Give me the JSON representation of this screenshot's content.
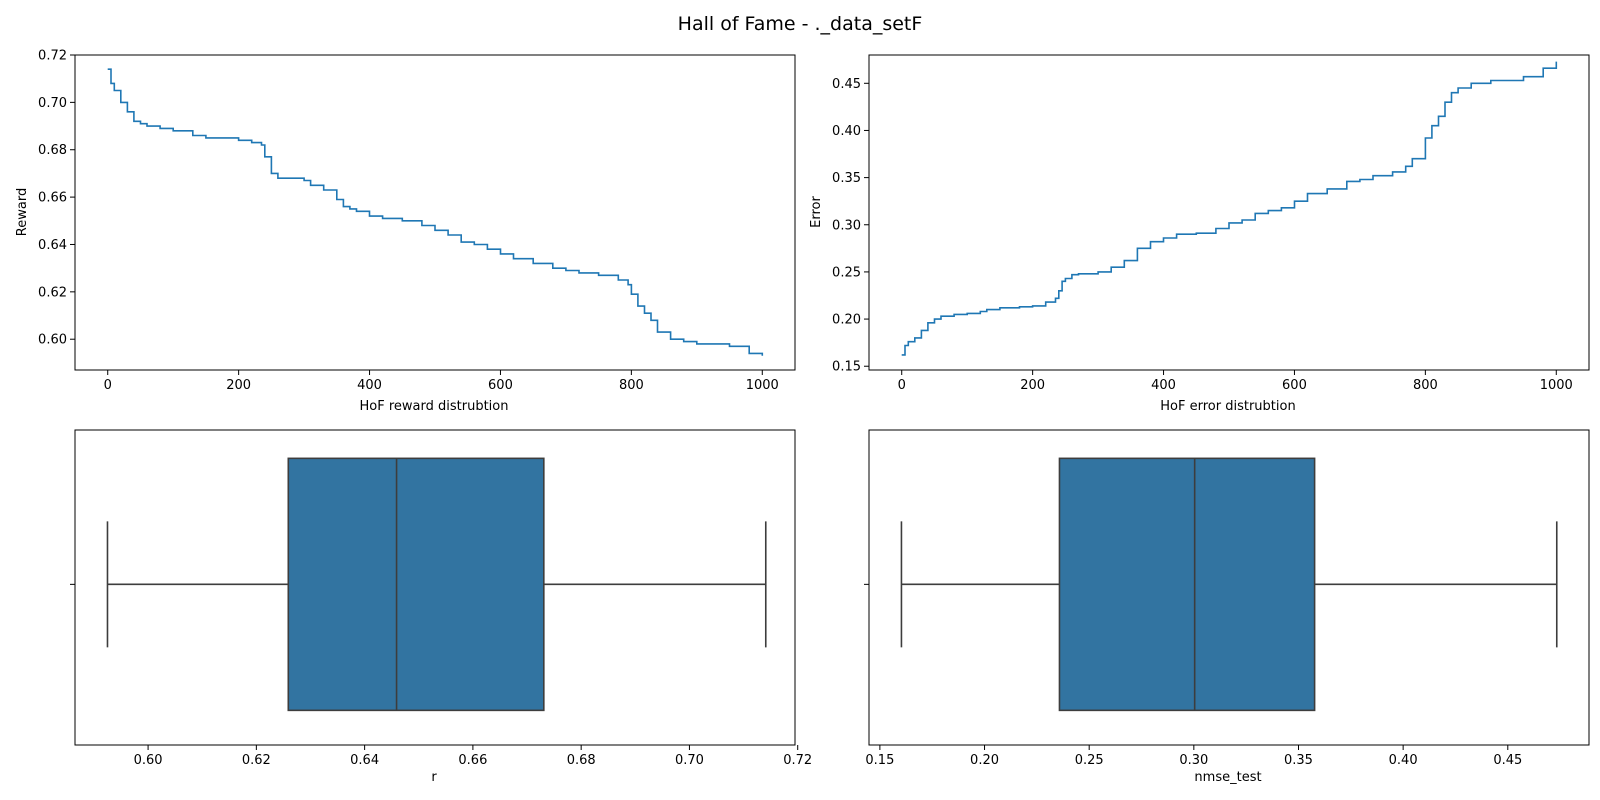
{
  "figure": {
    "title": "Hall of Fame - ._data_setF"
  },
  "colors": {
    "line": "#1f77b4",
    "box_fill": "#3274a1",
    "box_edge": "#3d3d3d",
    "axes": "#000000"
  },
  "chart_data": [
    {
      "type": "line",
      "xlabel": "HoF reward distrubtion",
      "ylabel": "Reward",
      "xlim": [
        -50,
        1050
      ],
      "ylim": [
        0.587,
        0.72
      ],
      "xticks": [
        0,
        200,
        400,
        600,
        800,
        1000
      ],
      "xtick_labels": [
        "0",
        "200",
        "400",
        "600",
        "800",
        "1000"
      ],
      "yticks": [
        0.6,
        0.62,
        0.64,
        0.66,
        0.68,
        0.7,
        0.72
      ],
      "ytick_labels": [
        "0.60",
        "0.62",
        "0.64",
        "0.66",
        "0.68",
        "0.70",
        "0.72"
      ],
      "series": [
        {
          "x": [
            0,
            5,
            10,
            20,
            30,
            40,
            50,
            60,
            80,
            100,
            120,
            130,
            150,
            180,
            200,
            220,
            235,
            240,
            250,
            260,
            280,
            300,
            310,
            330,
            350,
            360,
            370,
            380,
            400,
            420,
            450,
            480,
            500,
            520,
            540,
            560,
            580,
            600,
            620,
            650,
            680,
            700,
            720,
            750,
            780,
            795,
            800,
            810,
            820,
            830,
            840,
            860,
            880,
            900,
            950,
            980,
            1000
          ],
          "y": [
            0.714,
            0.708,
            0.705,
            0.7,
            0.696,
            0.692,
            0.691,
            0.69,
            0.689,
            0.688,
            0.688,
            0.686,
            0.685,
            0.685,
            0.684,
            0.683,
            0.682,
            0.677,
            0.67,
            0.668,
            0.668,
            0.667,
            0.665,
            0.663,
            0.659,
            0.656,
            0.655,
            0.654,
            0.652,
            0.651,
            0.65,
            0.648,
            0.646,
            0.644,
            0.641,
            0.64,
            0.638,
            0.636,
            0.634,
            0.632,
            0.63,
            0.629,
            0.628,
            0.627,
            0.625,
            0.623,
            0.619,
            0.614,
            0.611,
            0.608,
            0.603,
            0.6,
            0.599,
            0.598,
            0.597,
            0.594,
            0.593
          ]
        }
      ]
    },
    {
      "type": "line",
      "xlabel": "HoF error distrubtion",
      "ylabel": "Error",
      "xlim": [
        -50,
        1050
      ],
      "ylim": [
        0.146,
        0.48
      ],
      "xticks": [
        0,
        200,
        400,
        600,
        800,
        1000
      ],
      "xtick_labels": [
        "0",
        "200",
        "400",
        "600",
        "800",
        "1000"
      ],
      "yticks": [
        0.15,
        0.2,
        0.25,
        0.3,
        0.35,
        0.4,
        0.45
      ],
      "ytick_labels": [
        "0.15",
        "0.20",
        "0.25",
        "0.30",
        "0.35",
        "0.40",
        "0.45"
      ],
      "series": [
        {
          "x": [
            0,
            5,
            10,
            20,
            30,
            40,
            50,
            60,
            80,
            100,
            120,
            130,
            150,
            180,
            200,
            220,
            235,
            240,
            245,
            250,
            260,
            270,
            280,
            300,
            320,
            340,
            360,
            380,
            400,
            420,
            450,
            480,
            500,
            520,
            540,
            560,
            580,
            600,
            620,
            650,
            680,
            700,
            720,
            750,
            770,
            780,
            800,
            810,
            820,
            830,
            840,
            850,
            870,
            900,
            950,
            980,
            1000
          ],
          "y": [
            0.162,
            0.172,
            0.176,
            0.18,
            0.188,
            0.196,
            0.2,
            0.203,
            0.205,
            0.206,
            0.208,
            0.21,
            0.212,
            0.213,
            0.214,
            0.218,
            0.222,
            0.23,
            0.24,
            0.243,
            0.247,
            0.248,
            0.248,
            0.25,
            0.255,
            0.262,
            0.275,
            0.282,
            0.286,
            0.29,
            0.291,
            0.296,
            0.302,
            0.305,
            0.312,
            0.315,
            0.318,
            0.325,
            0.333,
            0.338,
            0.346,
            0.348,
            0.352,
            0.356,
            0.362,
            0.37,
            0.392,
            0.405,
            0.415,
            0.43,
            0.44,
            0.445,
            0.45,
            0.453,
            0.457,
            0.466,
            0.473
          ]
        }
      ]
    },
    {
      "type": "box",
      "xlabel": "r",
      "xlim": [
        0.5865,
        0.7195
      ],
      "xticks": [
        0.6,
        0.62,
        0.64,
        0.66,
        0.68,
        0.7,
        0.72
      ],
      "xtick_labels": [
        "0.60",
        "0.62",
        "0.64",
        "0.66",
        "0.68",
        "0.70",
        "0.72"
      ],
      "min": 0.5925,
      "q1": 0.6259,
      "median": 0.6459,
      "q3": 0.6731,
      "max": 0.7141
    },
    {
      "type": "box",
      "xlabel": "nmse_test",
      "xlim": [
        0.1448,
        0.4888
      ],
      "xticks": [
        0.15,
        0.2,
        0.25,
        0.3,
        0.35,
        0.4,
        0.45
      ],
      "xtick_labels": [
        "0.15",
        "0.20",
        "0.25",
        "0.30",
        "0.35",
        "0.40",
        "0.45"
      ],
      "min": 0.1603,
      "q1": 0.2358,
      "median": 0.3004,
      "q3": 0.3577,
      "max": 0.4734
    }
  ]
}
